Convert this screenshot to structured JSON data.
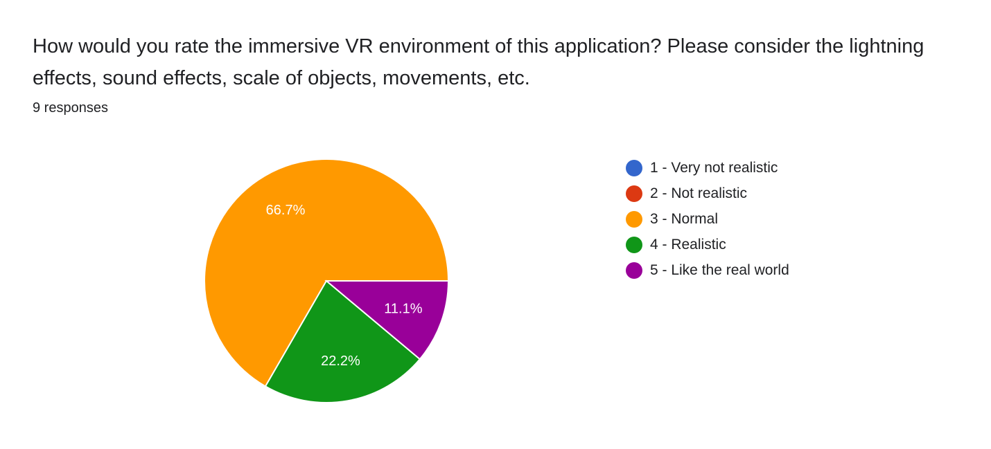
{
  "question": {
    "title": "How would you rate the immersive VR environment of this application? Please consider the lightning effects, sound effects, scale of objects, movements, etc.",
    "responses": "9 responses"
  },
  "chart_data": {
    "type": "pie",
    "title": "",
    "total_responses": 9,
    "categories": [
      "1 - Very not realistic",
      "2 - Not realistic",
      "3 - Normal",
      "4 - Realistic",
      "5 - Like the real world"
    ],
    "values": [
      0,
      0,
      6,
      2,
      1
    ],
    "percent_labels": [
      "",
      "",
      "66.7%",
      "22.2%",
      "11.1%"
    ],
    "colors": [
      "#3366cc",
      "#dc3912",
      "#ff9900",
      "#109618",
      "#990099"
    ],
    "legend_position": "right"
  }
}
